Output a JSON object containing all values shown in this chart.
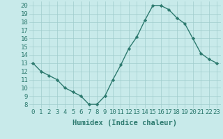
{
  "x": [
    0,
    1,
    2,
    3,
    4,
    5,
    6,
    7,
    8,
    9,
    10,
    11,
    12,
    13,
    14,
    15,
    16,
    17,
    18,
    19,
    20,
    21,
    22,
    23
  ],
  "y": [
    13,
    12,
    11.5,
    11,
    10,
    9.5,
    9,
    8,
    8,
    9,
    11,
    12.8,
    14.8,
    16.2,
    18.2,
    20,
    20,
    19.5,
    18.5,
    17.8,
    16,
    14.2,
    13.5,
    13
  ],
  "line_color": "#2d7a6f",
  "marker": "D",
  "marker_size": 2.2,
  "bg_color": "#c8eaea",
  "grid_color": "#a0cccc",
  "xlabel": "Humidex (Indice chaleur)",
  "xlim": [
    -0.5,
    23.5
  ],
  "ylim": [
    7.5,
    20.5
  ],
  "yticks": [
    8,
    9,
    10,
    11,
    12,
    13,
    14,
    15,
    16,
    17,
    18,
    19,
    20
  ],
  "xticks": [
    0,
    1,
    2,
    3,
    4,
    5,
    6,
    7,
    8,
    9,
    10,
    11,
    12,
    13,
    14,
    15,
    16,
    17,
    18,
    19,
    20,
    21,
    22,
    23
  ],
  "xtick_labels": [
    "0",
    "1",
    "2",
    "3",
    "4",
    "5",
    "6",
    "7",
    "8",
    "9",
    "10",
    "11",
    "12",
    "13",
    "14",
    "15",
    "16",
    "17",
    "18",
    "19",
    "20",
    "21",
    "22",
    "23"
  ],
  "font_size": 6.5,
  "xlabel_fontsize": 7.5,
  "label_color": "#2d7a6f"
}
